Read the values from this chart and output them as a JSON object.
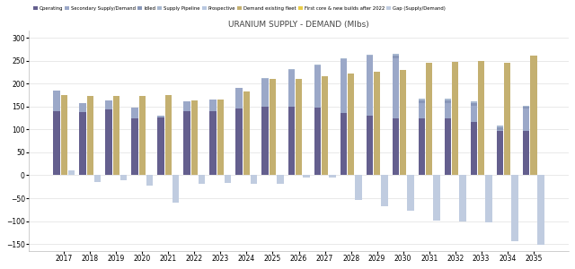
{
  "years": [
    2017,
    2018,
    2019,
    2020,
    2021,
    2022,
    2023,
    2024,
    2025,
    2026,
    2027,
    2028,
    2029,
    2030,
    2031,
    2032,
    2033,
    2034,
    2035
  ],
  "operating": [
    140,
    138,
    143,
    125,
    127,
    140,
    140,
    145,
    150,
    150,
    147,
    135,
    130,
    125,
    125,
    125,
    117,
    97,
    97
  ],
  "secondary": [
    45,
    20,
    20,
    22,
    2,
    22,
    25,
    45,
    60,
    80,
    93,
    118,
    130,
    130,
    33,
    33,
    35,
    2,
    48
  ],
  "idled": [
    0,
    0,
    0,
    0,
    0,
    0,
    0,
    0,
    0,
    0,
    0,
    0,
    0,
    5,
    5,
    5,
    5,
    5,
    5
  ],
  "supply_pipeline": [
    0,
    0,
    0,
    0,
    0,
    0,
    0,
    0,
    2,
    2,
    2,
    2,
    2,
    5,
    5,
    5,
    5,
    5,
    2
  ],
  "prospective": [
    0,
    0,
    0,
    0,
    0,
    0,
    0,
    0,
    0,
    0,
    0,
    0,
    0,
    0,
    0,
    0,
    0,
    0,
    0
  ],
  "demand_existing": [
    175,
    173,
    172,
    172,
    175,
    164,
    166,
    183,
    163,
    163,
    163,
    163,
    163,
    157,
    157,
    157,
    157,
    148,
    142
  ],
  "first_core": [
    0,
    0,
    0,
    0,
    0,
    0,
    0,
    0,
    0,
    0,
    0,
    0,
    0,
    0,
    0,
    0,
    0,
    0,
    0
  ],
  "demand_new": [
    0,
    0,
    0,
    0,
    0,
    0,
    0,
    0,
    47,
    47,
    52,
    59,
    62,
    73,
    88,
    90,
    93,
    97,
    118
  ],
  "first_core_new": [
    0,
    0,
    0,
    0,
    0,
    0,
    0,
    0,
    0,
    0,
    0,
    0,
    0,
    0,
    0,
    0,
    0,
    0,
    0
  ],
  "gap": [
    10,
    -15,
    -10,
    -22,
    -60,
    -18,
    -16,
    -18,
    -18,
    -5,
    -5,
    -53,
    -68,
    -78,
    -98,
    -100,
    -103,
    -143,
    -152
  ],
  "title": "URANIUM SUPPLY - DEMAND (Mlbs)",
  "colors": {
    "operating": "#645f8e",
    "secondary": "#9ba8c8",
    "idled": "#8896b8",
    "supply_pipeline": "#a8b8d0",
    "prospective": "#b8c8e0",
    "demand_existing": "#c4b070",
    "demand_new": "#c4b070",
    "first_core": "#e8cc48",
    "gap": "#c0cce0"
  },
  "legend_labels": [
    "Operating",
    "Secondary Supply/Demand",
    "Idled",
    "Supply Pipeline",
    "Prospective",
    "Demand existing fleet",
    "First core & new builds after 2022",
    "Gap (Supply/Demand)"
  ],
  "ylim": [
    -165,
    315
  ],
  "yticks": [
    -150,
    -100,
    -50,
    0,
    50,
    100,
    150,
    200,
    250,
    300
  ]
}
